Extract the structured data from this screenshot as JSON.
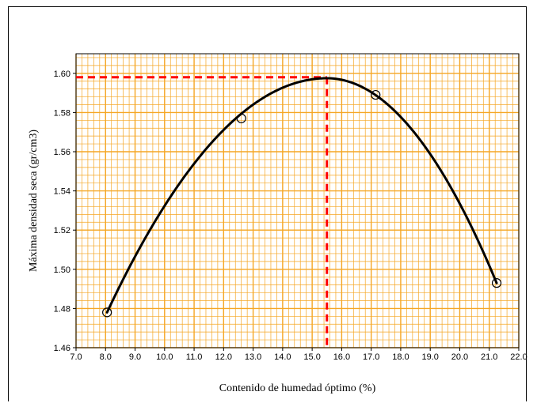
{
  "chart_data": {
    "type": "line",
    "title": "",
    "xlabel": "Contenido de humedad óptimo (%)",
    "ylabel": "Máxima densidad seca (gr/cm3)",
    "xlim": [
      7.0,
      22.0
    ],
    "ylim": [
      1.46,
      1.61
    ],
    "x_ticks": [
      "7.0",
      "8.0",
      "9.0",
      "10.0",
      "11.0",
      "12.0",
      "13.0",
      "14.0",
      "15.0",
      "16.0",
      "17.0",
      "18.0",
      "19.0",
      "20.0",
      "21.0",
      "22.0"
    ],
    "y_ticks": [
      "1.46",
      "1.48",
      "1.50",
      "1.52",
      "1.54",
      "1.56",
      "1.58",
      "1.60"
    ],
    "grid": true,
    "series": [
      {
        "type": "scatter",
        "x": [
          8.05,
          12.6,
          17.15,
          21.25
        ],
        "y": [
          1.478,
          1.577,
          1.589,
          1.493
        ]
      }
    ],
    "fit_curve": {
      "peak_x": 15.5,
      "peak_y": 1.5975,
      "x_start": 8.05,
      "x_end": 21.25
    },
    "optimum_reference": {
      "x": 15.5,
      "y": 1.598
    },
    "colors": {
      "grid": "#f5a623",
      "curve": "#000000",
      "reference": "#ff0000"
    }
  }
}
